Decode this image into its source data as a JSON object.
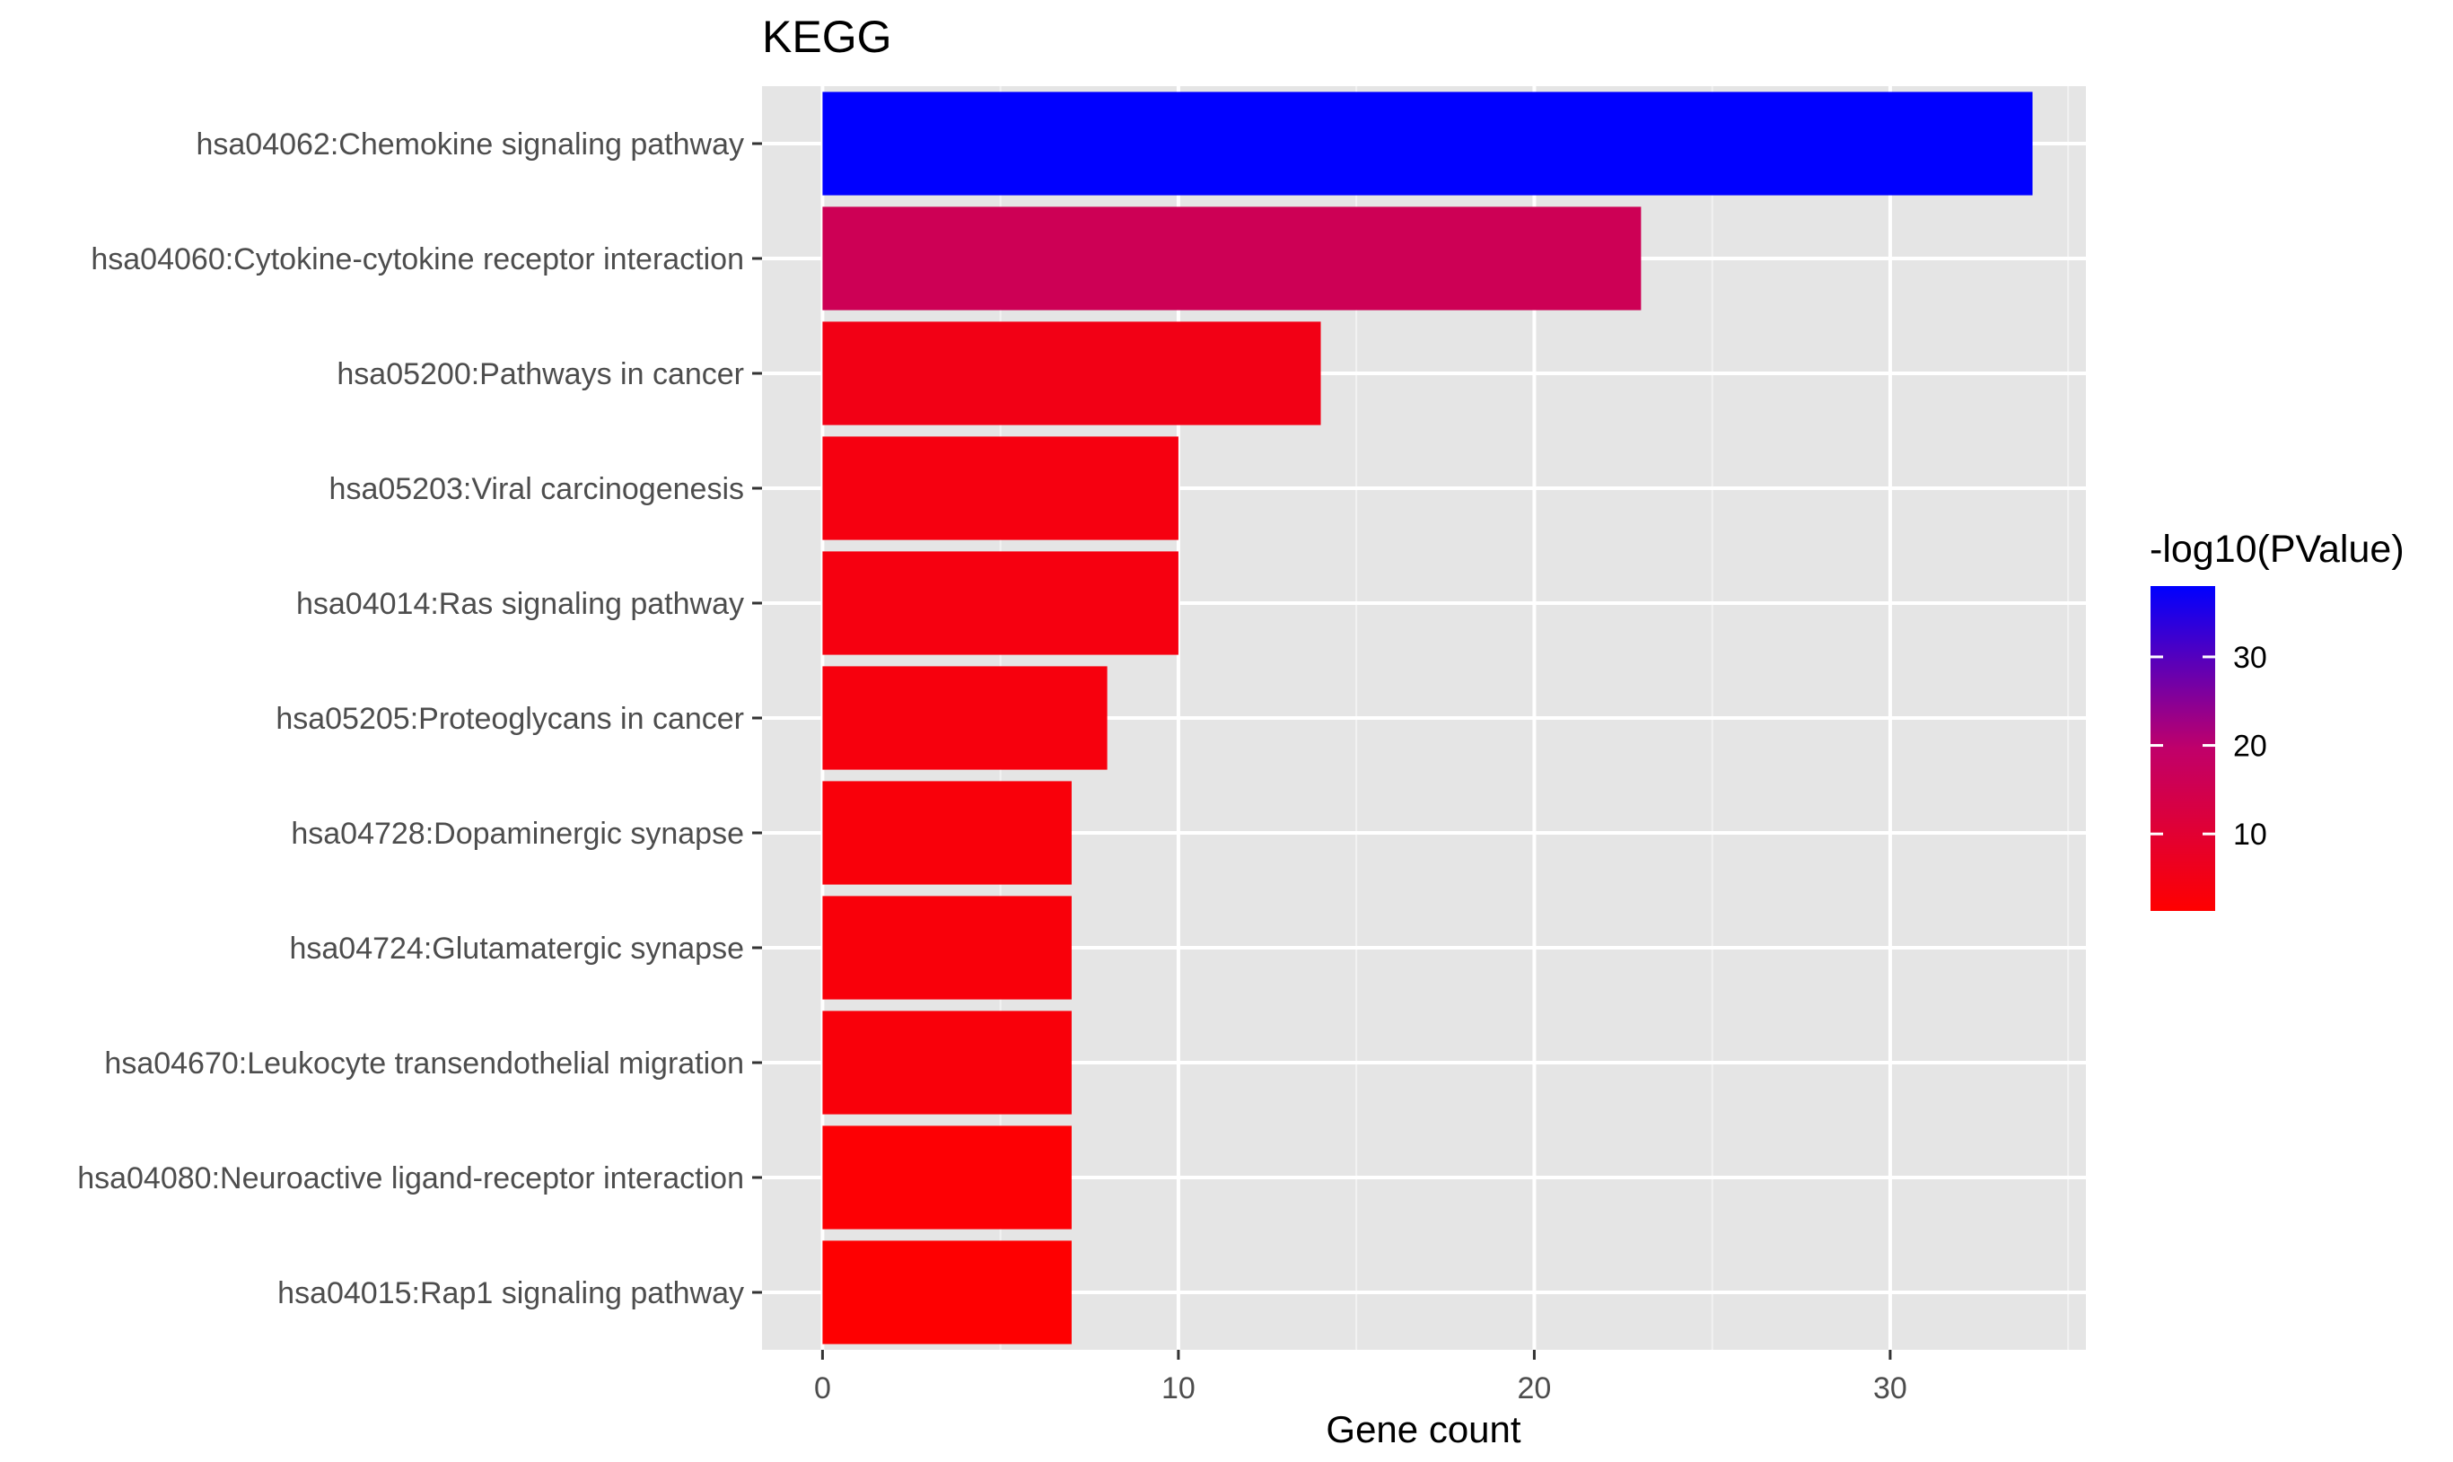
{
  "chart_data": {
    "type": "bar",
    "orientation": "horizontal",
    "title": "KEGG",
    "xlabel": "Gene count",
    "ylabel": "",
    "xlim": [
      -1.7,
      35.5
    ],
    "x_ticks": [
      0,
      10,
      20,
      30
    ],
    "grid": true,
    "categories": [
      "hsa04062:Chemokine signaling pathway",
      "hsa04060:Cytokine-cytokine receptor interaction",
      "hsa05200:Pathways in cancer",
      "hsa05203:Viral carcinogenesis",
      "hsa04014:Ras signaling pathway",
      "hsa05205:Proteoglycans in cancer",
      "hsa04728:Dopaminergic synapse",
      "hsa04724:Glutamatergic synapse",
      "hsa04670:Leukocyte transendothelial migration",
      "hsa04080:Neuroactive ligand-receptor interaction",
      "hsa04015:Rap1 signaling pathway"
    ],
    "values": [
      34,
      23,
      14,
      10,
      10,
      8,
      7,
      7,
      7,
      7,
      7
    ],
    "fill_values": [
      38,
      16,
      5,
      4,
      4,
      3.5,
      3,
      3,
      3,
      2,
      1.5
    ],
    "legend": {
      "title": "-log10(PValue)",
      "position": "right",
      "low": 1.3,
      "high": 38,
      "ticks": [
        10,
        20,
        30
      ],
      "low_color": "#ff0000",
      "high_color": "#0000ff"
    },
    "colors": {
      "panel_bg": "#e5e5e5",
      "grid_major": "#ffffff",
      "grid_minor": "#f2f2f2",
      "tick_text": "#4d4d4d",
      "axis_title": "#000000"
    }
  }
}
